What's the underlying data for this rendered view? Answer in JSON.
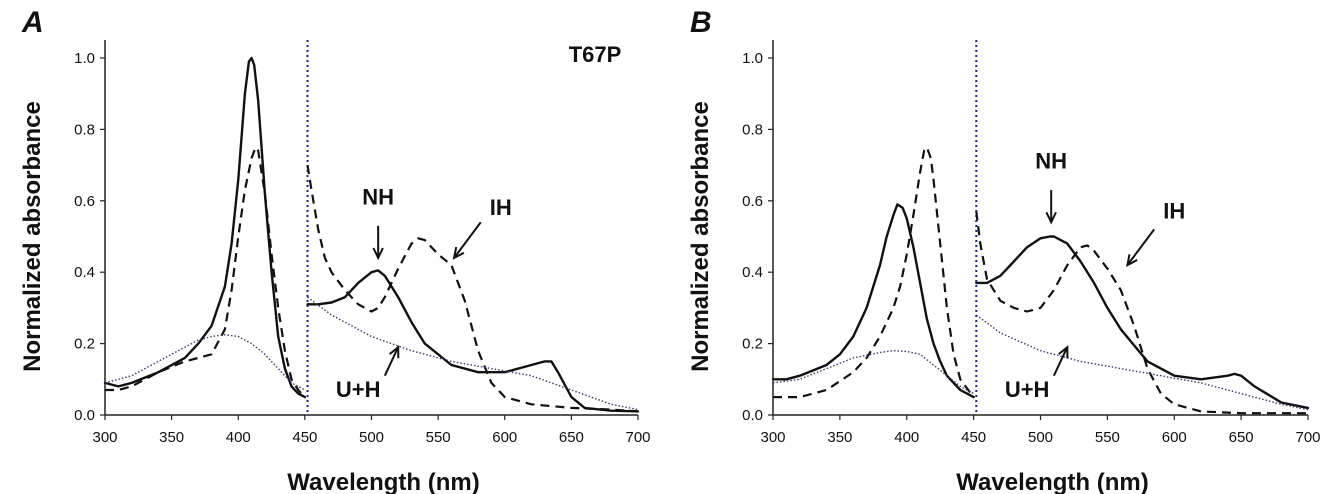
{
  "chart_data": [
    {
      "type": "line",
      "panel": "A",
      "label": "T67P",
      "xlabel": "Wavelength (nm)",
      "ylabel": "Normalized absorbance",
      "xlim": [
        300,
        700
      ],
      "ylim": [
        0,
        1.0
      ],
      "xticks": [
        300,
        350,
        400,
        450,
        500,
        550,
        600,
        650,
        700
      ],
      "yticks": [
        0.0,
        0.2,
        0.4,
        0.6,
        0.8,
        1.0
      ],
      "xtick_labels": [
        "300",
        "350",
        "400",
        "450",
        "500",
        "550",
        "600",
        "650",
        "700"
      ],
      "ytick_labels": [
        "0.0",
        "0.2",
        "0.4",
        "0.6",
        "0.8",
        "1.0"
      ],
      "divider_x": 452,
      "series": [
        {
          "name": "NH",
          "style": "solid",
          "x": [
            300,
            310,
            320,
            340,
            360,
            370,
            380,
            390,
            395,
            400,
            405,
            408,
            410,
            412,
            415,
            420,
            425,
            430,
            435,
            440,
            445,
            450
          ],
          "y": [
            0.09,
            0.08,
            0.09,
            0.12,
            0.16,
            0.2,
            0.25,
            0.36,
            0.48,
            0.66,
            0.9,
            0.99,
            1.0,
            0.98,
            0.88,
            0.62,
            0.4,
            0.22,
            0.13,
            0.08,
            0.06,
            0.05
          ]
        },
        {
          "name": "NH",
          "style": "solid",
          "x": [
            452,
            460,
            470,
            480,
            490,
            500,
            505,
            510,
            520,
            530,
            540,
            560,
            580,
            600,
            620,
            630,
            635,
            640,
            650,
            660,
            680,
            700
          ],
          "y": [
            0.31,
            0.31,
            0.315,
            0.33,
            0.37,
            0.4,
            0.405,
            0.39,
            0.33,
            0.26,
            0.2,
            0.14,
            0.12,
            0.12,
            0.14,
            0.15,
            0.15,
            0.12,
            0.05,
            0.02,
            0.012,
            0.01
          ]
        },
        {
          "name": "IH",
          "style": "dashed",
          "x": [
            300,
            310,
            320,
            340,
            360,
            370,
            380,
            390,
            395,
            400,
            405,
            410,
            413,
            415,
            420,
            425,
            430,
            435,
            440,
            445,
            450
          ],
          "y": [
            0.07,
            0.07,
            0.08,
            0.12,
            0.15,
            0.16,
            0.17,
            0.24,
            0.35,
            0.5,
            0.63,
            0.72,
            0.75,
            0.74,
            0.62,
            0.45,
            0.3,
            0.18,
            0.1,
            0.07,
            0.05
          ]
        },
        {
          "name": "IH",
          "style": "dashed",
          "x": [
            452,
            455,
            460,
            465,
            470,
            480,
            490,
            500,
            505,
            510,
            520,
            530,
            535,
            540,
            550,
            560,
            570,
            580,
            590,
            600,
            620,
            650,
            680,
            700
          ],
          "y": [
            0.7,
            0.63,
            0.52,
            0.44,
            0.4,
            0.35,
            0.31,
            0.29,
            0.3,
            0.33,
            0.41,
            0.48,
            0.495,
            0.49,
            0.45,
            0.42,
            0.32,
            0.18,
            0.09,
            0.05,
            0.03,
            0.02,
            0.015,
            0.01
          ]
        },
        {
          "name": "U+H",
          "style": "dotted",
          "x": [
            300,
            320,
            340,
            360,
            370,
            380,
            390,
            400,
            410,
            420,
            430,
            440,
            450
          ],
          "y": [
            0.09,
            0.11,
            0.15,
            0.19,
            0.21,
            0.22,
            0.225,
            0.22,
            0.2,
            0.17,
            0.13,
            0.09,
            0.07
          ]
        },
        {
          "name": "U+H",
          "style": "dotted",
          "x": [
            452,
            470,
            500,
            530,
            560,
            590,
            620,
            650,
            680,
            700
          ],
          "y": [
            0.33,
            0.28,
            0.22,
            0.18,
            0.15,
            0.13,
            0.11,
            0.07,
            0.03,
            0.015
          ]
        }
      ],
      "annotations": [
        {
          "text": "NH",
          "x": 505,
          "y": 0.59,
          "arrow_from": [
            505,
            0.53
          ],
          "arrow_to": [
            505,
            0.44
          ]
        },
        {
          "text": "IH",
          "x": 597,
          "y": 0.56,
          "arrow_from": [
            582,
            0.54
          ],
          "arrow_to": [
            562,
            0.44
          ]
        },
        {
          "text": "U+H",
          "x": 490,
          "y": 0.05,
          "arrow_from": [
            510,
            0.11
          ],
          "arrow_to": [
            520,
            0.19
          ]
        }
      ]
    },
    {
      "type": "line",
      "panel": "B",
      "label": "",
      "xlabel": "Wavelength (nm)",
      "ylabel": "Normalized absorbance",
      "xlim": [
        300,
        700
      ],
      "ylim": [
        0,
        1.0
      ],
      "xticks": [
        300,
        350,
        400,
        450,
        500,
        550,
        600,
        650,
        700
      ],
      "yticks": [
        0.0,
        0.2,
        0.4,
        0.6,
        0.8,
        1.0
      ],
      "xtick_labels": [
        "300",
        "350",
        "400",
        "450",
        "500",
        "550",
        "600",
        "650",
        "700"
      ],
      "ytick_labels": [
        "0.0",
        "0.2",
        "0.4",
        "0.6",
        "0.8",
        "1.0"
      ],
      "divider_x": 452,
      "series": [
        {
          "name": "NH",
          "style": "solid",
          "x": [
            300,
            310,
            320,
            340,
            350,
            360,
            370,
            380,
            385,
            390,
            393,
            397,
            400,
            405,
            410,
            415,
            420,
            425,
            430,
            440,
            450
          ],
          "y": [
            0.1,
            0.1,
            0.11,
            0.14,
            0.17,
            0.22,
            0.3,
            0.42,
            0.5,
            0.56,
            0.59,
            0.58,
            0.55,
            0.47,
            0.37,
            0.27,
            0.2,
            0.15,
            0.11,
            0.07,
            0.05
          ]
        },
        {
          "name": "NH",
          "style": "solid",
          "x": [
            452,
            460,
            470,
            480,
            490,
            500,
            507,
            510,
            520,
            530,
            540,
            550,
            560,
            580,
            600,
            620,
            640,
            645,
            650,
            660,
            680,
            700
          ],
          "y": [
            0.37,
            0.37,
            0.39,
            0.43,
            0.47,
            0.495,
            0.5,
            0.5,
            0.48,
            0.43,
            0.37,
            0.3,
            0.24,
            0.15,
            0.11,
            0.1,
            0.11,
            0.115,
            0.11,
            0.08,
            0.035,
            0.02
          ]
        },
        {
          "name": "IH",
          "style": "dashed",
          "x": [
            300,
            320,
            340,
            360,
            370,
            380,
            390,
            395,
            400,
            405,
            410,
            413,
            415,
            418,
            420,
            425,
            430,
            435,
            440,
            450
          ],
          "y": [
            0.05,
            0.05,
            0.07,
            0.12,
            0.16,
            0.22,
            0.3,
            0.36,
            0.45,
            0.56,
            0.68,
            0.74,
            0.75,
            0.72,
            0.66,
            0.48,
            0.3,
            0.17,
            0.1,
            0.05
          ]
        },
        {
          "name": "IH",
          "style": "dashed",
          "x": [
            452,
            455,
            460,
            470,
            480,
            490,
            500,
            510,
            520,
            530,
            535,
            540,
            550,
            560,
            570,
            580,
            590,
            600,
            620,
            650,
            700
          ],
          "y": [
            0.57,
            0.48,
            0.38,
            0.32,
            0.3,
            0.29,
            0.3,
            0.35,
            0.42,
            0.47,
            0.475,
            0.46,
            0.41,
            0.35,
            0.25,
            0.13,
            0.06,
            0.03,
            0.01,
            0.005,
            0.005
          ]
        },
        {
          "name": "U+H",
          "style": "dotted",
          "x": [
            300,
            320,
            340,
            360,
            380,
            390,
            400,
            410,
            420,
            430,
            440,
            450
          ],
          "y": [
            0.09,
            0.1,
            0.13,
            0.16,
            0.175,
            0.18,
            0.178,
            0.17,
            0.14,
            0.11,
            0.08,
            0.06
          ]
        },
        {
          "name": "U+H",
          "style": "dotted",
          "x": [
            452,
            470,
            500,
            530,
            560,
            590,
            620,
            650,
            680,
            700
          ],
          "y": [
            0.28,
            0.23,
            0.18,
            0.15,
            0.13,
            0.11,
            0.09,
            0.06,
            0.03,
            0.015
          ]
        }
      ],
      "annotations": [
        {
          "text": "NH",
          "x": 508,
          "y": 0.69,
          "arrow_from": [
            508,
            0.63
          ],
          "arrow_to": [
            508,
            0.54
          ]
        },
        {
          "text": "IH",
          "x": 600,
          "y": 0.55,
          "arrow_from": [
            585,
            0.52
          ],
          "arrow_to": [
            565,
            0.42
          ]
        },
        {
          "text": "U+H",
          "x": 490,
          "y": 0.05,
          "arrow_from": [
            510,
            0.11
          ],
          "arrow_to": [
            520,
            0.19
          ]
        }
      ]
    }
  ]
}
